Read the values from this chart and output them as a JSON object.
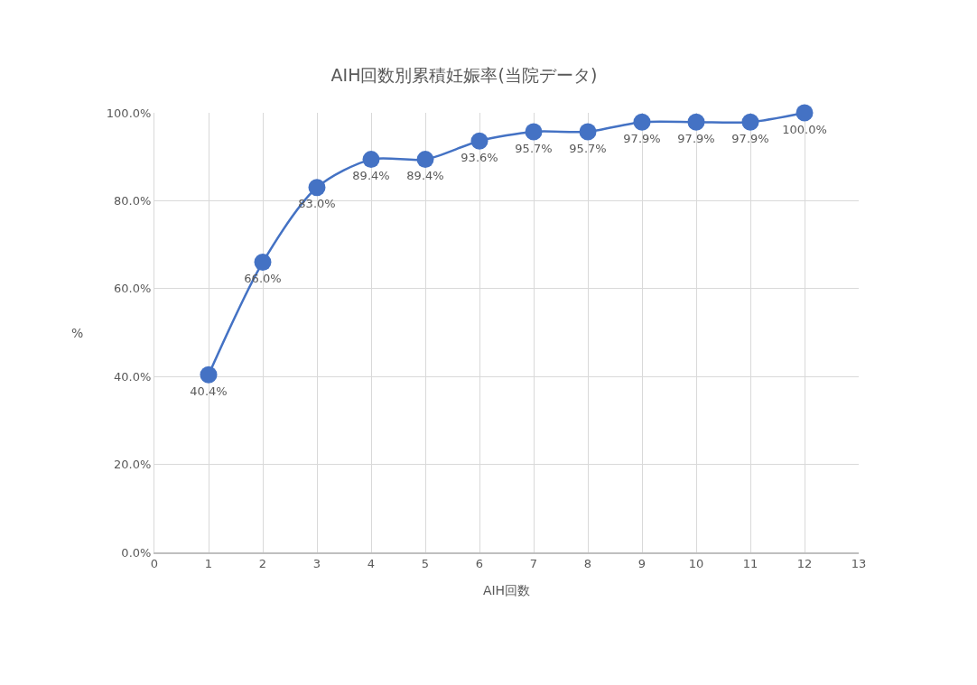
{
  "chart_data": {
    "type": "line",
    "title": "AIH回数別累積妊娠率(当院データ)",
    "xlabel": "AIH回数",
    "ylabel": "%",
    "x": [
      1,
      2,
      3,
      4,
      5,
      6,
      7,
      8,
      9,
      10,
      11,
      12
    ],
    "series": [
      {
        "color": "#4472c4",
        "values": [
          40.4,
          66.0,
          83.0,
          89.4,
          89.4,
          93.6,
          95.7,
          95.7,
          97.9,
          97.9,
          97.9,
          100.0
        ],
        "value_labels": [
          "40.4%",
          "66.0%",
          "83.0%",
          "89.4%",
          "89.4%",
          "93.6%",
          "95.7%",
          "95.7%",
          "97.9%",
          "97.9%",
          "97.9%",
          "100.0%"
        ]
      }
    ],
    "xlim": [
      0,
      13
    ],
    "xticks": [
      0,
      1,
      2,
      3,
      4,
      5,
      6,
      7,
      8,
      9,
      10,
      11,
      12,
      13
    ],
    "ylim": [
      0,
      100
    ],
    "yticks": [
      {
        "value": 0,
        "label": "0.0%"
      },
      {
        "value": 20,
        "label": "20.0%"
      },
      {
        "value": 40,
        "label": "40.0%"
      },
      {
        "value": 60,
        "label": "60.0%"
      },
      {
        "value": 80,
        "label": "80.0%"
      },
      {
        "value": 100,
        "label": "100.0%"
      }
    ],
    "grid": true,
    "marker": "circle",
    "line_style": "solid"
  }
}
